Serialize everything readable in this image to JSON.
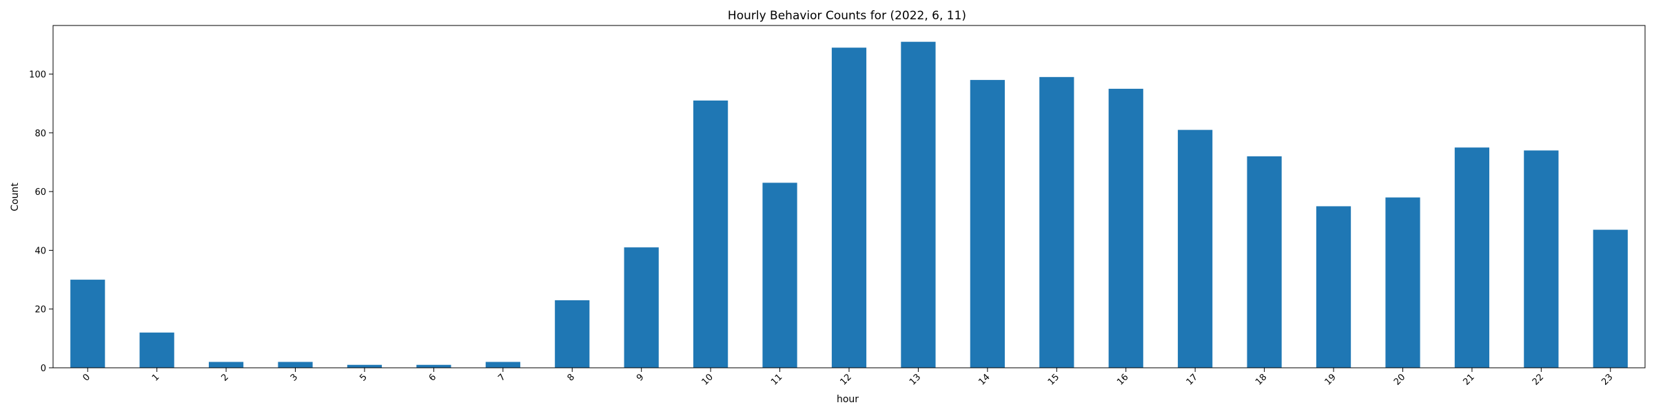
{
  "chart_data": {
    "type": "bar",
    "title": "Hourly Behavior Counts for (2022, 6, 11)",
    "xlabel": "hour",
    "ylabel": "Count",
    "categories": [
      "0",
      "1",
      "2",
      "3",
      "5",
      "6",
      "7",
      "8",
      "9",
      "10",
      "11",
      "12",
      "13",
      "14",
      "15",
      "16",
      "17",
      "18",
      "19",
      "20",
      "21",
      "22",
      "23"
    ],
    "values": [
      30,
      12,
      2,
      2,
      1,
      1,
      2,
      23,
      41,
      91,
      63,
      109,
      111,
      98,
      99,
      95,
      81,
      72,
      55,
      58,
      75,
      74,
      47
    ],
    "ylim": [
      0,
      116.55
    ],
    "yticks": [
      0,
      20,
      40,
      60,
      80,
      100
    ],
    "grid": false,
    "legend": "none",
    "bar_color": "#1f77b4"
  }
}
